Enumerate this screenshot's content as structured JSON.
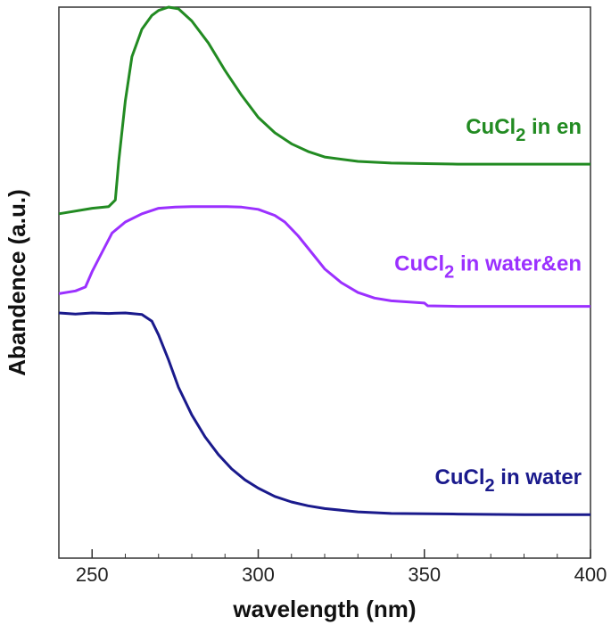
{
  "chart_data": {
    "type": "line",
    "xlabel": "wavelength (nm)",
    "ylabel": "Abandence (a.u.)",
    "xlim": [
      240,
      400
    ],
    "ylim": [
      0,
      10
    ],
    "x_ticks": [
      250,
      300,
      350,
      400
    ],
    "y_ticks_labeled": false,
    "grid": false,
    "series": [
      {
        "name_main": "CuCl",
        "name_sub": "2",
        "name_rest": " in en",
        "color": "#228b22",
        "points": [
          [
            240,
            6.25
          ],
          [
            250,
            6.35
          ],
          [
            255,
            6.38
          ],
          [
            257,
            6.5
          ],
          [
            258,
            7.2
          ],
          [
            260,
            8.3
          ],
          [
            262,
            9.1
          ],
          [
            265,
            9.6
          ],
          [
            268,
            9.85
          ],
          [
            270,
            9.94
          ],
          [
            273,
            10.0
          ],
          [
            276,
            9.97
          ],
          [
            280,
            9.75
          ],
          [
            285,
            9.35
          ],
          [
            290,
            8.85
          ],
          [
            295,
            8.4
          ],
          [
            300,
            8.0
          ],
          [
            305,
            7.72
          ],
          [
            310,
            7.52
          ],
          [
            315,
            7.38
          ],
          [
            320,
            7.28
          ],
          [
            330,
            7.2
          ],
          [
            340,
            7.17
          ],
          [
            360,
            7.15
          ],
          [
            380,
            7.15
          ],
          [
            400,
            7.15
          ]
        ]
      },
      {
        "name_main": "CuCl",
        "name_sub": "2",
        "name_rest": " in water&en",
        "color": "#9b30ff",
        "points": [
          [
            240,
            4.8
          ],
          [
            245,
            4.85
          ],
          [
            248,
            4.92
          ],
          [
            250,
            5.2
          ],
          [
            253,
            5.55
          ],
          [
            256,
            5.9
          ],
          [
            260,
            6.1
          ],
          [
            265,
            6.25
          ],
          [
            270,
            6.35
          ],
          [
            275,
            6.37
          ],
          [
            280,
            6.38
          ],
          [
            285,
            6.38
          ],
          [
            290,
            6.38
          ],
          [
            295,
            6.37
          ],
          [
            300,
            6.33
          ],
          [
            305,
            6.22
          ],
          [
            308,
            6.1
          ],
          [
            312,
            5.85
          ],
          [
            316,
            5.55
          ],
          [
            320,
            5.25
          ],
          [
            325,
            5.0
          ],
          [
            330,
            4.82
          ],
          [
            335,
            4.72
          ],
          [
            340,
            4.67
          ],
          [
            350,
            4.63
          ],
          [
            351,
            4.58
          ],
          [
            360,
            4.57
          ],
          [
            380,
            4.57
          ],
          [
            400,
            4.57
          ]
        ]
      },
      {
        "name_main": "CuCl",
        "name_sub": "2",
        "name_rest": "  in water",
        "color": "#1a1a8c",
        "points": [
          [
            240,
            4.45
          ],
          [
            245,
            4.43
          ],
          [
            250,
            4.45
          ],
          [
            255,
            4.44
          ],
          [
            260,
            4.45
          ],
          [
            265,
            4.42
          ],
          [
            268,
            4.3
          ],
          [
            270,
            4.05
          ],
          [
            273,
            3.6
          ],
          [
            276,
            3.1
          ],
          [
            280,
            2.6
          ],
          [
            284,
            2.2
          ],
          [
            288,
            1.88
          ],
          [
            292,
            1.62
          ],
          [
            296,
            1.42
          ],
          [
            300,
            1.27
          ],
          [
            305,
            1.12
          ],
          [
            310,
            1.02
          ],
          [
            315,
            0.95
          ],
          [
            320,
            0.9
          ],
          [
            330,
            0.84
          ],
          [
            340,
            0.81
          ],
          [
            360,
            0.8
          ],
          [
            380,
            0.79
          ],
          [
            400,
            0.79
          ]
        ]
      }
    ]
  }
}
